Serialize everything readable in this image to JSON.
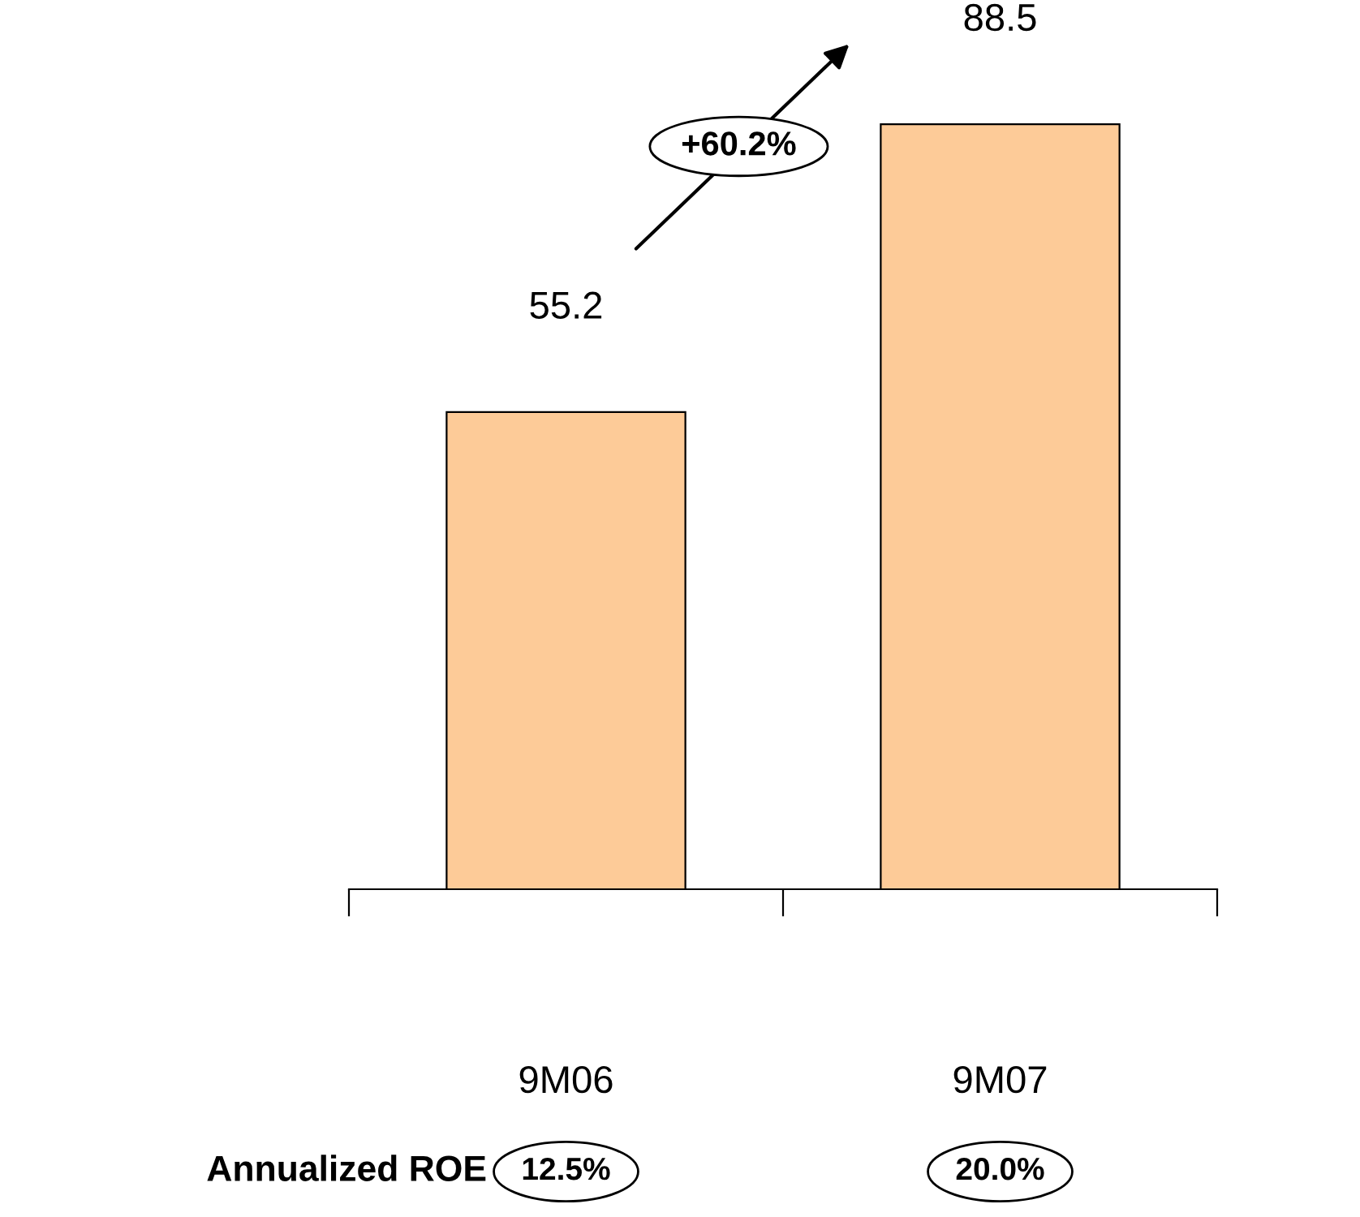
{
  "chart_data": {
    "type": "bar",
    "categories": [
      "9M06",
      "9M07"
    ],
    "values": [
      55.2,
      88.5
    ],
    "color": "#fdcb98",
    "data_labels": true,
    "grid": false,
    "legend": false,
    "annotations": [
      "+60.2%",
      "Annualized ROE",
      "12.5%",
      "20.0%"
    ]
  }
}
